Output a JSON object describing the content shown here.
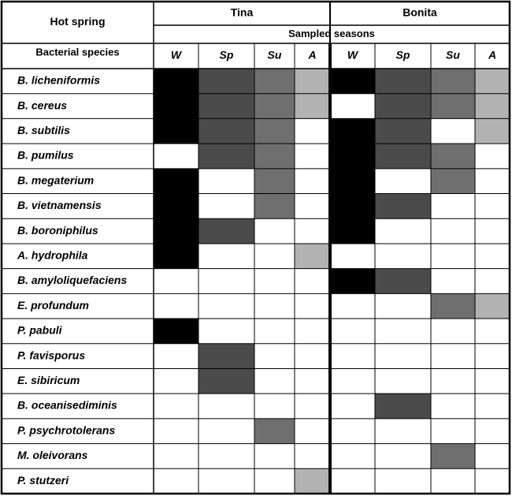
{
  "header": {
    "hot_spring": "Hot spring",
    "sites": [
      "Tina",
      "Bonita"
    ],
    "sampled_seasons": "Sampled seasons",
    "bacterial_species": "Bacterial species",
    "seasons": [
      "W",
      "Sp",
      "Su",
      "A"
    ]
  },
  "season_colors": [
    "#000000",
    "#4b4b4b",
    "#6f6f6f",
    "#b2b2b2"
  ],
  "rows": [
    {
      "species": "B. licheniformis",
      "presence": [
        1,
        1,
        1,
        1,
        1,
        1,
        1,
        1
      ]
    },
    {
      "species": "B. cereus",
      "presence": [
        1,
        1,
        1,
        1,
        0,
        1,
        1,
        1
      ]
    },
    {
      "species": "B. subtilis",
      "presence": [
        1,
        1,
        1,
        0,
        1,
        1,
        0,
        1
      ]
    },
    {
      "species": "B. pumilus",
      "presence": [
        0,
        1,
        1,
        0,
        1,
        1,
        1,
        0
      ]
    },
    {
      "species": "B. megaterium",
      "presence": [
        1,
        0,
        1,
        0,
        1,
        0,
        1,
        0
      ]
    },
    {
      "species": "B. vietnamensis",
      "presence": [
        1,
        0,
        1,
        0,
        1,
        1,
        0,
        0
      ]
    },
    {
      "species": "B. boroniphilus",
      "presence": [
        1,
        1,
        0,
        0,
        1,
        0,
        0,
        0
      ]
    },
    {
      "species": "A. hydrophila",
      "presence": [
        1,
        0,
        0,
        1,
        0,
        0,
        0,
        0
      ]
    },
    {
      "species": "B. amyloliquefaciens",
      "presence": [
        0,
        0,
        0,
        0,
        1,
        1,
        0,
        0
      ]
    },
    {
      "species": "E. profundum",
      "presence": [
        0,
        0,
        0,
        0,
        0,
        0,
        1,
        1
      ]
    },
    {
      "species": "P. pabuli",
      "presence": [
        1,
        0,
        0,
        0,
        0,
        0,
        0,
        0
      ]
    },
    {
      "species": "P. favisporus",
      "presence": [
        0,
        1,
        0,
        0,
        0,
        0,
        0,
        0
      ]
    },
    {
      "species": "E. sibiricum",
      "presence": [
        0,
        1,
        0,
        0,
        0,
        0,
        0,
        0
      ]
    },
    {
      "species": "B. oceanisediminis",
      "presence": [
        0,
        0,
        0,
        0,
        0,
        1,
        0,
        0
      ]
    },
    {
      "species": "P. psychrotolerans",
      "presence": [
        0,
        0,
        1,
        0,
        0,
        0,
        0,
        0
      ]
    },
    {
      "species": "M. oleivorans",
      "presence": [
        0,
        0,
        0,
        0,
        0,
        0,
        1,
        0
      ]
    },
    {
      "species": "P. stutzeri",
      "presence": [
        0,
        0,
        0,
        1,
        0,
        0,
        0,
        0
      ]
    }
  ]
}
